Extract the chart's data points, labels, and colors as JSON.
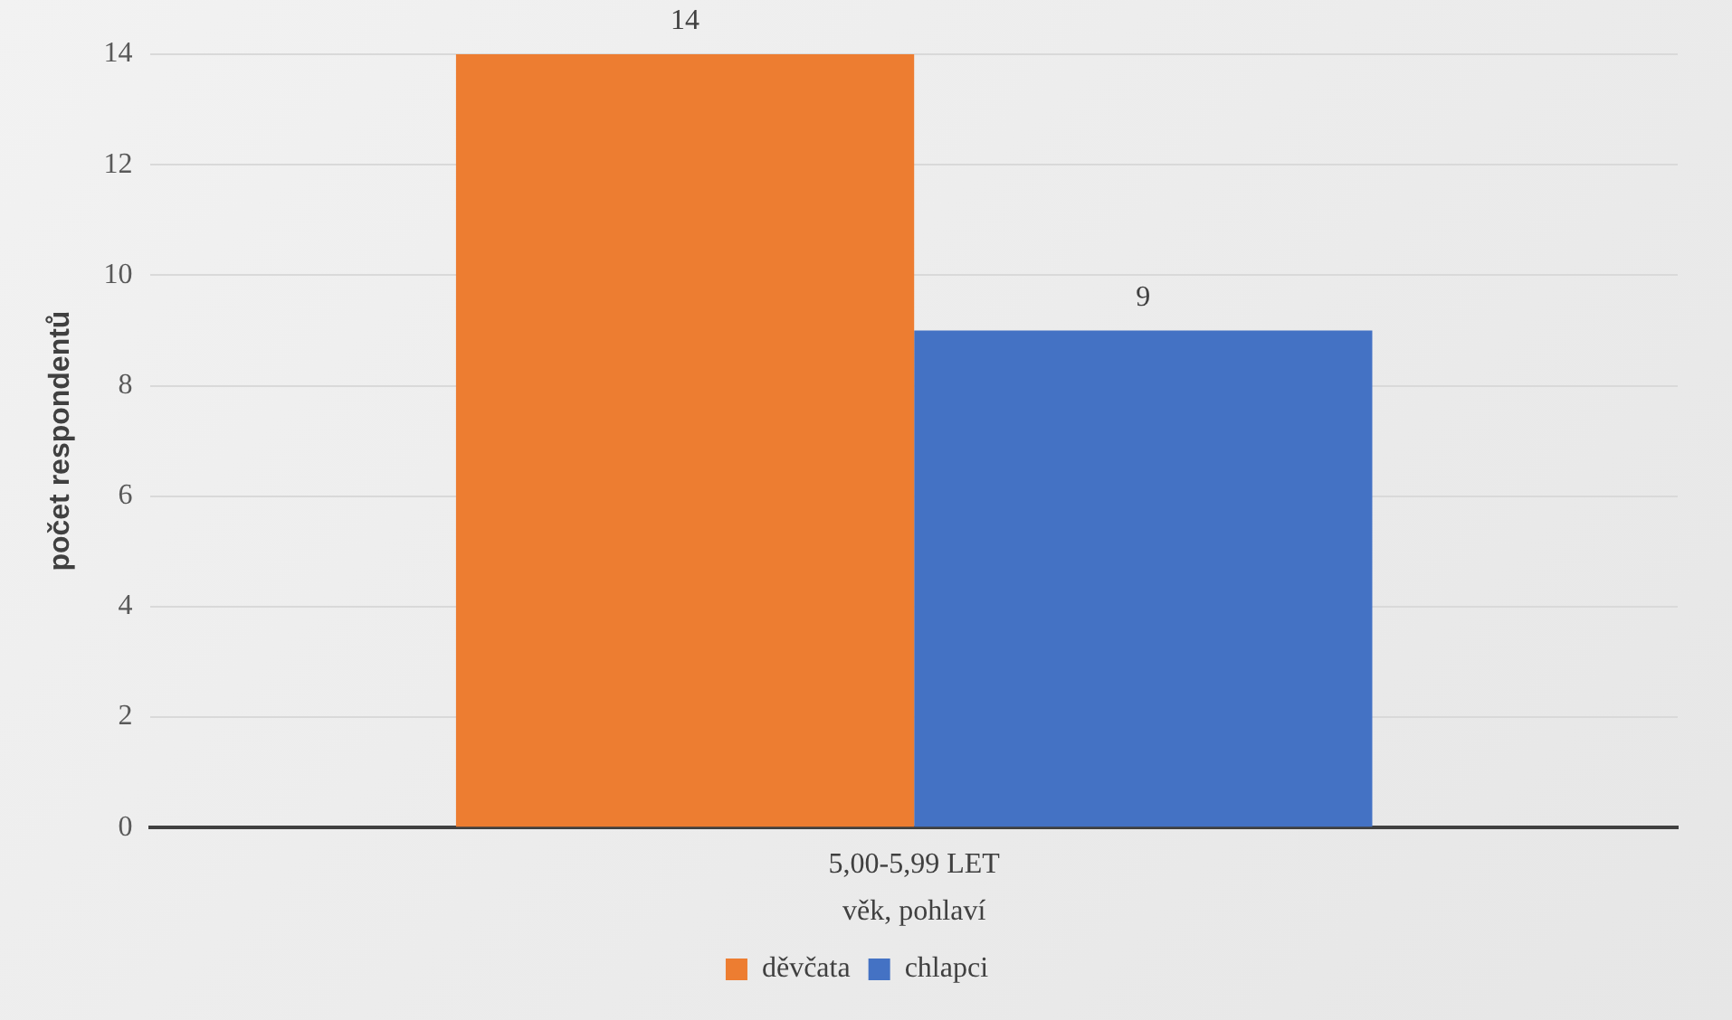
{
  "chart_data": {
    "type": "bar",
    "xlabel": "věk, pohlaví",
    "ylabel": "počet respondentů",
    "categories": [
      "5,00-5,99 LET"
    ],
    "series": [
      {
        "name": "děvčata",
        "color": "#ed7d31",
        "values": [
          14
        ]
      },
      {
        "name": "chlapci",
        "color": "#4472c4",
        "values": [
          9
        ]
      }
    ],
    "ylim": [
      0,
      14
    ],
    "yticks": [
      0,
      2,
      4,
      6,
      8,
      10,
      12,
      14
    ],
    "grid": "y",
    "legend": "bottom",
    "data_labels": true
  }
}
